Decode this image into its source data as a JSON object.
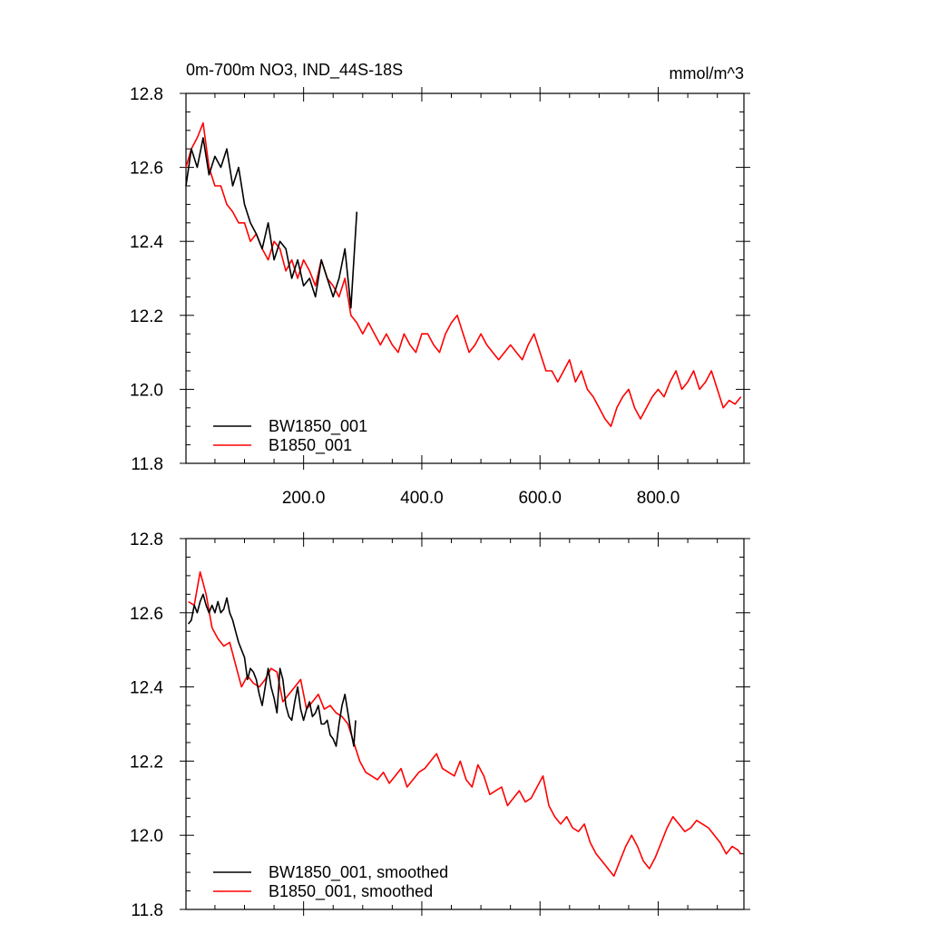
{
  "chart_data": [
    {
      "type": "line",
      "title": "0m-700m NO3, IND_44S-18S",
      "units": "mmol/m^3",
      "xlim": [
        1,
        945
      ],
      "ylim": [
        11.8,
        12.8
      ],
      "xticks": [
        200,
        400,
        600,
        800
      ],
      "xtick_labels": [
        "200.0",
        "400.0",
        "600.0",
        "800.0"
      ],
      "yticks": [
        11.8,
        12.0,
        12.2,
        12.4,
        12.6,
        12.8
      ],
      "ytick_labels": [
        "11.8",
        "12.0",
        "12.2",
        "12.4",
        "12.6",
        "12.8"
      ],
      "grid": false,
      "legend_position": "bottom-left",
      "series": [
        {
          "name": "BW1850_001",
          "color": "#000000",
          "x": [
            1,
            10,
            20,
            30,
            40,
            50,
            60,
            70,
            80,
            90,
            100,
            110,
            120,
            130,
            140,
            150,
            160,
            170,
            180,
            190,
            200,
            210,
            220,
            230,
            240,
            250,
            260,
            270,
            280,
            290
          ],
          "y": [
            12.55,
            12.65,
            12.6,
            12.68,
            12.58,
            12.63,
            12.6,
            12.65,
            12.55,
            12.6,
            12.5,
            12.45,
            12.42,
            12.38,
            12.45,
            12.35,
            12.4,
            12.38,
            12.3,
            12.35,
            12.28,
            12.3,
            12.25,
            12.35,
            12.3,
            12.25,
            12.3,
            12.38,
            12.22,
            12.48
          ]
        },
        {
          "name": "B1850_001",
          "color": "#ff0000",
          "x": [
            1,
            10,
            20,
            30,
            40,
            50,
            60,
            70,
            80,
            90,
            100,
            110,
            120,
            130,
            140,
            150,
            160,
            170,
            180,
            190,
            200,
            210,
            220,
            230,
            240,
            250,
            260,
            270,
            280,
            290,
            300,
            310,
            320,
            330,
            340,
            350,
            360,
            370,
            380,
            390,
            400,
            410,
            420,
            430,
            440,
            450,
            460,
            470,
            480,
            490,
            500,
            510,
            520,
            530,
            540,
            550,
            560,
            570,
            580,
            590,
            600,
            610,
            620,
            630,
            640,
            650,
            660,
            670,
            680,
            690,
            700,
            710,
            720,
            730,
            740,
            750,
            760,
            770,
            780,
            790,
            800,
            810,
            820,
            830,
            840,
            850,
            860,
            870,
            880,
            890,
            900,
            910,
            920,
            930,
            940
          ],
          "y": [
            12.6,
            12.65,
            12.68,
            12.72,
            12.6,
            12.55,
            12.55,
            12.5,
            12.48,
            12.45,
            12.45,
            12.4,
            12.42,
            12.38,
            12.35,
            12.4,
            12.38,
            12.32,
            12.35,
            12.3,
            12.35,
            12.32,
            12.28,
            12.35,
            12.3,
            12.28,
            12.25,
            12.3,
            12.2,
            12.18,
            12.15,
            12.18,
            12.15,
            12.12,
            12.15,
            12.12,
            12.1,
            12.15,
            12.12,
            12.1,
            12.15,
            12.15,
            12.12,
            12.1,
            12.15,
            12.18,
            12.2,
            12.15,
            12.1,
            12.12,
            12.15,
            12.12,
            12.1,
            12.08,
            12.1,
            12.12,
            12.1,
            12.08,
            12.12,
            12.15,
            12.1,
            12.05,
            12.05,
            12.02,
            12.05,
            12.08,
            12.02,
            12.05,
            12.0,
            11.98,
            11.95,
            11.92,
            11.9,
            11.95,
            11.98,
            12.0,
            11.95,
            11.92,
            11.95,
            11.98,
            12.0,
            11.98,
            12.02,
            12.05,
            12.0,
            12.02,
            12.05,
            12.0,
            12.02,
            12.05,
            12.0,
            11.95,
            11.97,
            11.96,
            11.98
          ]
        }
      ]
    },
    {
      "type": "line",
      "xlim": [
        1,
        945
      ],
      "ylim": [
        11.8,
        12.8
      ],
      "xticks": [
        200,
        400,
        600,
        800
      ],
      "yticks": [
        11.8,
        12.0,
        12.2,
        12.4,
        12.6,
        12.8
      ],
      "ytick_labels": [
        "11.8",
        "12.0",
        "12.2",
        "12.4",
        "12.6",
        "12.8"
      ],
      "grid": false,
      "legend_position": "bottom-left",
      "series": [
        {
          "name": "BW1850_001, smoothed",
          "color": "#000000",
          "x": [
            5,
            10,
            15,
            20,
            25,
            30,
            35,
            40,
            45,
            50,
            55,
            60,
            65,
            70,
            75,
            80,
            85,
            90,
            95,
            100,
            105,
            110,
            115,
            120,
            125,
            130,
            135,
            140,
            145,
            150,
            155,
            160,
            165,
            170,
            175,
            180,
            185,
            190,
            195,
            200,
            205,
            210,
            215,
            220,
            225,
            230,
            235,
            240,
            245,
            250,
            255,
            260,
            265,
            270,
            275,
            280,
            285,
            288
          ],
          "y": [
            12.57,
            12.58,
            12.62,
            12.6,
            12.63,
            12.65,
            12.62,
            12.6,
            12.62,
            12.6,
            12.63,
            12.6,
            12.61,
            12.64,
            12.6,
            12.58,
            12.55,
            12.52,
            12.5,
            12.48,
            12.42,
            12.45,
            12.44,
            12.42,
            12.38,
            12.35,
            12.4,
            12.45,
            12.4,
            12.37,
            12.33,
            12.45,
            12.42,
            12.35,
            12.32,
            12.31,
            12.36,
            12.4,
            12.34,
            12.31,
            12.34,
            12.36,
            12.32,
            12.33,
            12.35,
            12.3,
            12.3,
            12.31,
            12.27,
            12.26,
            12.24,
            12.3,
            12.35,
            12.38,
            12.33,
            12.28,
            12.24,
            12.31
          ]
        },
        {
          "name": "B1850_001, smoothed",
          "color": "#ff0000",
          "x": [
            5,
            15,
            25,
            35,
            45,
            55,
            65,
            75,
            85,
            95,
            105,
            115,
            125,
            135,
            145,
            155,
            165,
            175,
            185,
            195,
            205,
            215,
            225,
            235,
            245,
            255,
            265,
            275,
            285,
            295,
            305,
            315,
            325,
            335,
            345,
            355,
            365,
            375,
            385,
            395,
            405,
            415,
            425,
            435,
            445,
            455,
            465,
            475,
            485,
            495,
            505,
            515,
            525,
            535,
            545,
            555,
            565,
            575,
            585,
            595,
            605,
            615,
            625,
            635,
            645,
            655,
            665,
            675,
            685,
            695,
            705,
            715,
            725,
            735,
            745,
            755,
            765,
            775,
            785,
            795,
            805,
            815,
            825,
            835,
            845,
            855,
            865,
            875,
            885,
            895,
            905,
            915,
            925,
            935,
            940
          ],
          "y": [
            12.63,
            12.62,
            12.71,
            12.65,
            12.56,
            12.53,
            12.51,
            12.52,
            12.46,
            12.4,
            12.43,
            12.41,
            12.4,
            12.42,
            12.45,
            12.44,
            12.36,
            12.38,
            12.4,
            12.42,
            12.34,
            12.36,
            12.38,
            12.34,
            12.35,
            12.33,
            12.32,
            12.3,
            12.25,
            12.2,
            12.17,
            12.16,
            12.15,
            12.17,
            12.14,
            12.16,
            12.18,
            12.13,
            12.15,
            12.17,
            12.18,
            12.2,
            12.22,
            12.18,
            12.17,
            12.16,
            12.2,
            12.15,
            12.13,
            12.19,
            12.16,
            12.11,
            12.12,
            12.13,
            12.08,
            12.1,
            12.12,
            12.09,
            12.1,
            12.13,
            12.16,
            12.08,
            12.05,
            12.03,
            12.05,
            12.02,
            12.01,
            12.03,
            11.98,
            11.95,
            11.93,
            11.91,
            11.89,
            11.93,
            11.97,
            12.0,
            11.97,
            11.93,
            11.91,
            11.94,
            11.98,
            12.02,
            12.05,
            12.03,
            12.01,
            12.02,
            12.04,
            12.03,
            12.02,
            12.0,
            11.98,
            11.95,
            11.97,
            11.96,
            11.95
          ]
        }
      ]
    }
  ]
}
